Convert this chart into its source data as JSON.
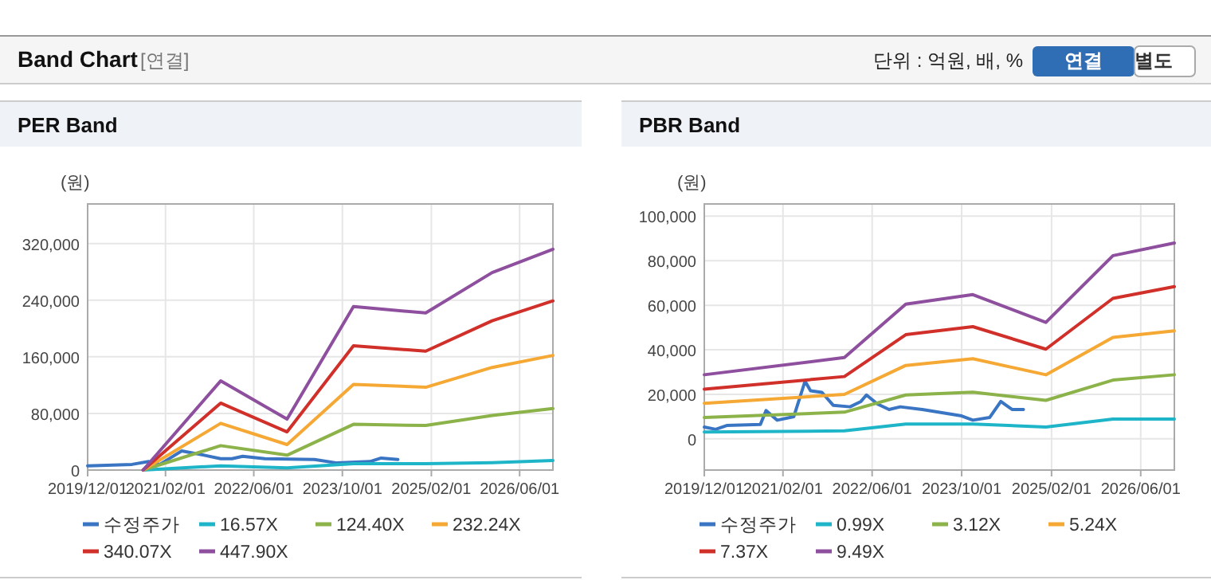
{
  "chart_data": [
    {
      "type": "line",
      "title": "PER Band",
      "ylabel": "(원)",
      "annotations": [
        "Band Chart",
        "[연결]",
        "단위 : 억원, 배, %",
        "연결",
        "별도"
      ],
      "xlim": [
        "2019-12-01",
        "2026-12-01"
      ],
      "xticks": [
        {
          "value": "2019-12-01",
          "label": "2019/12/01"
        },
        {
          "value": "2021-02-01",
          "label": "2021/02/01"
        },
        {
          "value": "2022-06-01",
          "label": "2022/06/01"
        },
        {
          "value": "2023-10-01",
          "label": "2023/10/01"
        },
        {
          "value": "2025-02-01",
          "label": "2025/02/01"
        },
        {
          "value": "2026-06-01",
          "label": "2026/06/01"
        }
      ],
      "ylim": [
        0,
        376000
      ],
      "yticks": [
        {
          "value": 0,
          "label": "0"
        },
        {
          "value": 80000,
          "label": "80,000"
        },
        {
          "value": 160000,
          "label": "160,000"
        },
        {
          "value": 240000,
          "label": "240,000"
        },
        {
          "value": 320000,
          "label": "320,000"
        }
      ],
      "grid": true,
      "legend": "bottom",
      "marker": "none",
      "line_style": "solid",
      "series": [
        {
          "name": "수정주가",
          "color": "#3a75c4",
          "x": [
            "2019-12",
            "2020-08",
            "2020-11",
            "2021-01",
            "2021-05",
            "2021-09",
            "2021-12",
            "2022-02",
            "2022-04",
            "2022-08",
            "2023-05",
            "2023-09",
            "2024-03",
            "2024-05",
            "2024-08"
          ],
          "values": [
            6000,
            8000,
            12000,
            8000,
            27000,
            21000,
            16000,
            16000,
            19500,
            16000,
            15000,
            10000,
            12000,
            17000,
            15000
          ]
        },
        {
          "name": "16.57X",
          "color": "#1fb5c9",
          "x": [
            "2020-10",
            "2021-12",
            "2022-12",
            "2023-12",
            "2025-01",
            "2026-01",
            "2026-12"
          ],
          "values": [
            0,
            6000,
            3000,
            9000,
            9000,
            10500,
            13500
          ]
        },
        {
          "name": "124.40X",
          "color": "#8cb24a",
          "x": [
            "2020-10",
            "2021-12",
            "2022-12",
            "2023-12",
            "2025-01",
            "2026-01",
            "2026-12"
          ],
          "values": [
            0,
            34500,
            21000,
            64600,
            63000,
            77000,
            87000
          ]
        },
        {
          "name": "232.24X",
          "color": "#f5a833",
          "x": [
            "2020-10",
            "2021-12",
            "2022-12",
            "2023-12",
            "2025-01",
            "2026-01",
            "2026-12"
          ],
          "values": [
            0,
            66000,
            36000,
            121000,
            117000,
            145000,
            162000
          ]
        },
        {
          "name": "340.07X",
          "color": "#d1302a",
          "x": [
            "2020-10",
            "2021-12",
            "2022-12",
            "2023-12",
            "2025-01",
            "2026-01",
            "2026-12"
          ],
          "values": [
            0,
            94600,
            54000,
            175700,
            168000,
            211000,
            239000
          ]
        },
        {
          "name": "447.90X",
          "color": "#8e4f9e",
          "x": [
            "2020-10",
            "2021-12",
            "2022-12",
            "2023-12",
            "2025-01",
            "2026-01",
            "2026-12"
          ],
          "values": [
            0,
            126000,
            72000,
            231000,
            222000,
            279000,
            312000
          ]
        }
      ]
    },
    {
      "type": "line",
      "title": "PBR Band",
      "ylabel": "(원)",
      "xlim": [
        "2019-12-01",
        "2026-12-01"
      ],
      "xticks": [
        {
          "value": "2019-12-01",
          "label": "2019/12/01"
        },
        {
          "value": "2021-02-01",
          "label": "2021/02/01"
        },
        {
          "value": "2022-06-01",
          "label": "2022/06/01"
        },
        {
          "value": "2023-10-01",
          "label": "2023/10/01"
        },
        {
          "value": "2025-02-01",
          "label": "2025/02/01"
        },
        {
          "value": "2026-06-01",
          "label": "2026/06/01"
        }
      ],
      "ylim": [
        -14000,
        105500
      ],
      "yticks": [
        {
          "value": 0,
          "label": "0"
        },
        {
          "value": 20000,
          "label": "20,000"
        },
        {
          "value": 40000,
          "label": "40,000"
        },
        {
          "value": 60000,
          "label": "60,000"
        },
        {
          "value": 80000,
          "label": "80,000"
        },
        {
          "value": 100000,
          "label": "100,000"
        }
      ],
      "grid": true,
      "legend": "bottom",
      "marker": "none",
      "line_style": "solid",
      "series": [
        {
          "name": "수정주가",
          "color": "#3a75c4",
          "x": [
            "2019-12",
            "2020-02",
            "2020-04",
            "2020-10",
            "2020-11",
            "2021-01",
            "2021-04",
            "2021-06",
            "2021-07",
            "2021-09",
            "2021-11",
            "2022-02",
            "2022-04",
            "2022-05",
            "2022-07",
            "2022-09",
            "2022-11",
            "2023-03",
            "2023-10",
            "2023-12",
            "2024-03",
            "2024-05",
            "2024-07",
            "2024-09"
          ],
          "values": [
            5300,
            4300,
            6000,
            6500,
            12700,
            8400,
            10000,
            25900,
            21600,
            20900,
            15100,
            14400,
            16800,
            19700,
            15600,
            13200,
            14400,
            13200,
            10300,
            8400,
            9600,
            16800,
            13200,
            13200
          ]
        },
        {
          "name": "0.99X",
          "color": "#1fb5c9",
          "x": [
            "2019-12",
            "2022-01",
            "2022-12",
            "2023-12",
            "2025-01",
            "2026-01",
            "2026-12"
          ],
          "values": [
            3100,
            3600,
            6700,
            6700,
            5300,
            8900,
            8900
          ]
        },
        {
          "name": "3.12X",
          "color": "#8cb24a",
          "x": [
            "2019-12",
            "2022-01",
            "2022-12",
            "2023-12",
            "2025-01",
            "2026-01",
            "2026-12"
          ],
          "values": [
            9600,
            12000,
            19700,
            21000,
            17300,
            26400,
            28800
          ]
        },
        {
          "name": "5.24X",
          "color": "#f5a833",
          "x": [
            "2019-12",
            "2022-01",
            "2022-12",
            "2023-12",
            "2025-01",
            "2026-01",
            "2026-12"
          ],
          "values": [
            16000,
            20000,
            33000,
            36000,
            28800,
            45600,
            48500
          ]
        },
        {
          "name": "7.37X",
          "color": "#d1302a",
          "x": [
            "2019-12",
            "2022-01",
            "2022-12",
            "2023-12",
            "2025-01",
            "2026-01",
            "2026-12"
          ],
          "values": [
            22300,
            28000,
            46800,
            50400,
            40300,
            63100,
            68400
          ]
        },
        {
          "name": "9.49X",
          "color": "#8e4f9e",
          "x": [
            "2019-12",
            "2022-01",
            "2022-12",
            "2023-12",
            "2025-01",
            "2026-01",
            "2026-12"
          ],
          "values": [
            28800,
            36500,
            60500,
            64800,
            52300,
            82300,
            88000
          ]
        }
      ]
    }
  ]
}
